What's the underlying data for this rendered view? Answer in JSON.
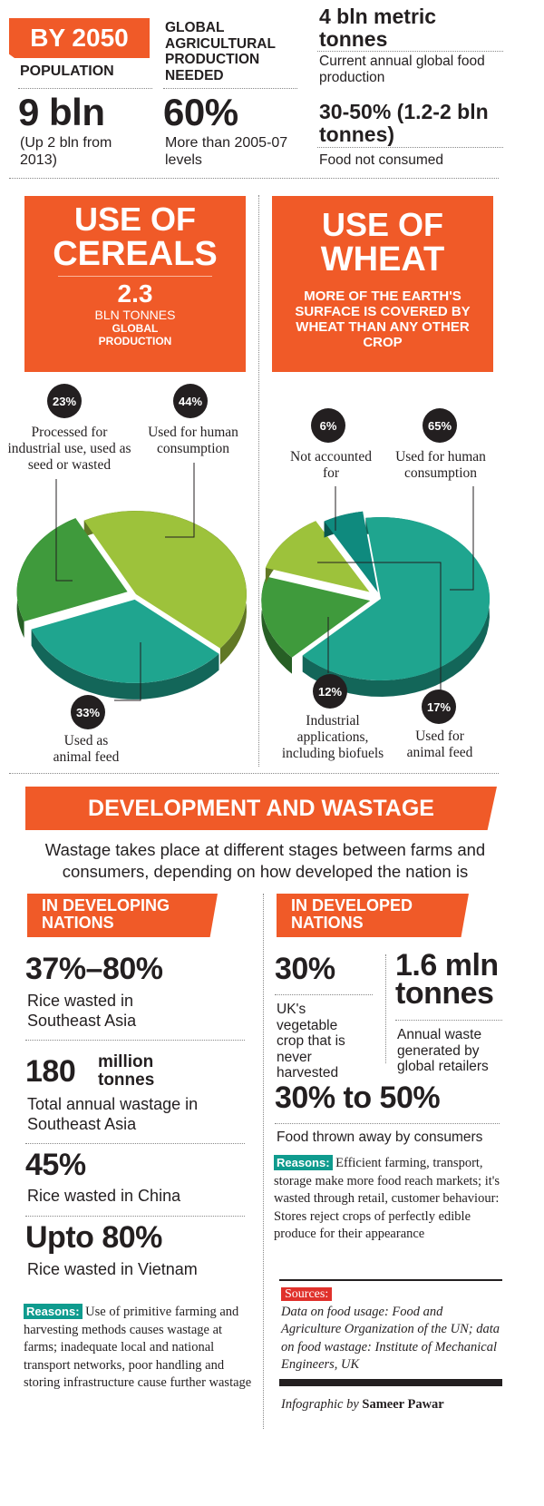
{
  "header": {
    "by_2050": "BY 2050",
    "population": {
      "title": "POPULATION",
      "value": "9 bln",
      "note": "(Up 2 bln from 2013)"
    },
    "agri": {
      "title": "GLOBAL AGRICULTURAL PRODUCTION NEEDED",
      "value": "60%",
      "note": "More than 2005-07 levels"
    },
    "production": {
      "value": "4 bln metric tonnes",
      "note": "Current annual global food production"
    },
    "not_consumed": {
      "value": "30-50% (1.2-2 bln tonnes)",
      "note": "Food not consumed"
    }
  },
  "cereals": {
    "title1": "USE OF",
    "title2": "CEREALS",
    "amount": "2.3",
    "unit": "BLN TONNES",
    "desc1": "GLOBAL",
    "desc2": "PRODUCTION"
  },
  "wheat": {
    "title1": "USE OF",
    "title2": "WHEAT",
    "desc": "MORE OF THE EARTH'S SURFACE IS COVERED BY WHEAT THAN ANY OTHER CROP"
  },
  "chart_data": [
    {
      "type": "pie",
      "title": "USE OF CEREALS",
      "categories": [
        "Used for human consumption",
        "Used as animal feed",
        "Processed for industrial use, used as seed or wasted"
      ],
      "values": [
        44,
        33,
        23
      ],
      "labels": [
        "44%",
        "33%",
        "23%"
      ],
      "colors": [
        "#9dc23b",
        "#1fa58f",
        "#3f9a3c"
      ]
    },
    {
      "type": "pie",
      "title": "USE OF WHEAT",
      "categories": [
        "Used for human consumption",
        "Used for animal feed",
        "Industrial applications, including biofuels",
        "Not accounted for"
      ],
      "values": [
        65,
        17,
        12,
        6
      ],
      "labels": [
        "65%",
        "17%",
        "12%",
        "6%"
      ],
      "colors": [
        "#1fa58f",
        "#3f9a3c",
        "#9dc23b",
        "#0f8a7e"
      ]
    }
  ],
  "pie_labels": {
    "cereal_industrial": "Processed for industrial use, used as seed or wasted",
    "cereal_human": "Used for human consumption",
    "cereal_feed": "Used as animal feed",
    "wheat_not": "Not accounted for",
    "wheat_human": "Used for human consumption",
    "wheat_industrial": "Industrial applications, including biofuels",
    "wheat_feed": "Used for animal feed"
  },
  "development": {
    "title": "DEVELOPMENT AND WASTAGE",
    "intro": "Wastage takes place at different stages between farms and consumers, depending on how developed the nation is"
  },
  "developing": {
    "header": "IN DEVELOPING NATIONS",
    "stats": [
      {
        "value": "37%–80%",
        "desc": "Rice wasted in Southeast Asia"
      },
      {
        "value": "180",
        "unit": "million tonnes",
        "desc": "Total annual wastage in Southeast Asia"
      },
      {
        "value": "45%",
        "desc": "Rice wasted in China"
      },
      {
        "value": "Upto 80%",
        "desc": "Rice wasted in Vietnam"
      }
    ],
    "reasons_label": "Reasons:",
    "reasons_text": "Use of primitive farming and harvesting methods causes wastage at farms; inadequate local and national transport networks, poor handling and storing infrastructure cause further wastage"
  },
  "developed": {
    "header": "IN DEVELOPED NATIONS",
    "stats": [
      {
        "value": "30%",
        "desc": "UK's vegetable crop that is never harvested"
      },
      {
        "value": "1.6 mln tonnes",
        "desc": "Annual waste generated by global retailers"
      },
      {
        "value": "30% to 50%",
        "desc": "Food thrown away by consumers"
      }
    ],
    "reasons_label": "Reasons:",
    "reasons_text": "Efficient farming, transport, storage make more food reach markets; it's wasted through retail, customer behaviour: Stores reject crops of perfectly edible produce for their appearance"
  },
  "sources": {
    "label": "Sources:",
    "text": "Data on food usage: Food and Agriculture Organization of the UN; data on food wastage: Institute of Mechanical Engineers, UK",
    "credit_prefix": "Infographic by",
    "credit_name": "Sameer Pawar"
  },
  "colors": {
    "orange": "#f05a28",
    "teal": "#1fa58f",
    "green": "#3f9a3c",
    "lime": "#9dc23b",
    "reason_tag": "#0f9b8e",
    "source_tag": "#e0312b"
  }
}
